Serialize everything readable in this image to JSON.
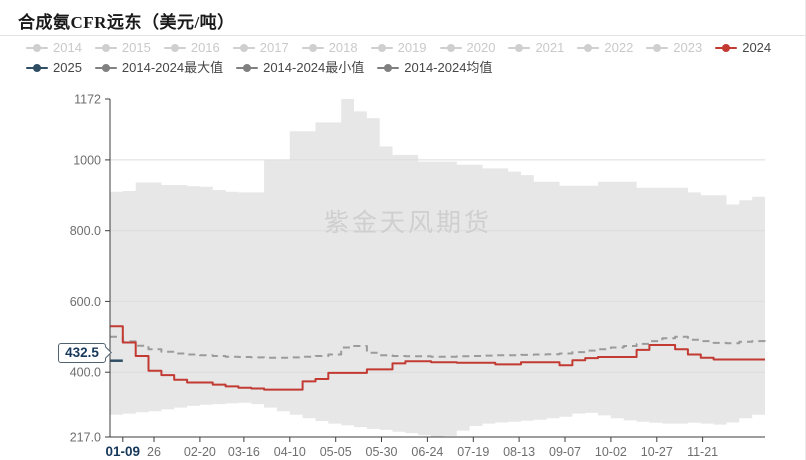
{
  "title": "合成氨CFR远东（美元/吨）",
  "watermark": "紫金天风期货",
  "colors": {
    "red_2024": "#c23a32",
    "navy_2025": "#2f4e63",
    "band_fill": "#e7e7e7",
    "mean_dash": "#9b9b9b",
    "legend_disabled": "#cfcfcf",
    "legend_gray_marker": "#808080",
    "legend_active_text": "#464646",
    "axis_line": "#3d3d3d",
    "tick_text": "#6e6e6e",
    "highlight_text": "#16385a",
    "gridline": "#dcdcdc",
    "watermark_text": "#cfcfcf"
  },
  "legend": {
    "rows": [
      [
        {
          "key": "2014",
          "label": "2014",
          "marker": "#cfcfcf",
          "text": "#c9c9c9",
          "active": false
        },
        {
          "key": "2015",
          "label": "2015",
          "marker": "#cfcfcf",
          "text": "#c9c9c9",
          "active": false
        },
        {
          "key": "2016",
          "label": "2016",
          "marker": "#cfcfcf",
          "text": "#c9c9c9",
          "active": false
        },
        {
          "key": "2017",
          "label": "2017",
          "marker": "#cfcfcf",
          "text": "#c9c9c9",
          "active": false
        },
        {
          "key": "2018",
          "label": "2018",
          "marker": "#cfcfcf",
          "text": "#c9c9c9",
          "active": false
        },
        {
          "key": "2019",
          "label": "2019",
          "marker": "#cfcfcf",
          "text": "#c9c9c9",
          "active": false
        },
        {
          "key": "2020",
          "label": "2020",
          "marker": "#cfcfcf",
          "text": "#c9c9c9",
          "active": false
        },
        {
          "key": "2021",
          "label": "2021",
          "marker": "#cfcfcf",
          "text": "#c9c9c9",
          "active": false
        },
        {
          "key": "2022",
          "label": "2022",
          "marker": "#cfcfcf",
          "text": "#c9c9c9",
          "active": false
        },
        {
          "key": "2023",
          "label": "2023",
          "marker": "#cfcfcf",
          "text": "#c9c9c9",
          "active": false
        },
        {
          "key": "2024",
          "label": "2024",
          "marker": "#c23a32",
          "text": "#464646",
          "active": true
        }
      ],
      [
        {
          "key": "2025",
          "label": "2025",
          "marker": "#2f4e63",
          "text": "#464646",
          "active": true
        },
        {
          "key": "max",
          "label": "2014-2024最大值",
          "marker": "#808080",
          "text": "#464646",
          "active": true
        },
        {
          "key": "min",
          "label": "2014-2024最小值",
          "marker": "#808080",
          "text": "#464646",
          "active": true
        },
        {
          "key": "avg",
          "label": "2014-2024均值",
          "marker": "#808080",
          "text": "#464646",
          "active": true
        }
      ]
    ]
  },
  "chart_data": {
    "type": "line",
    "title": "合成氨CFR远东（美元/吨）",
    "ylabel": "美元/吨",
    "ylim": [
      217,
      1172
    ],
    "weeks": 52,
    "x_start_day": 2,
    "x_end_day": 359,
    "grid": true,
    "legend_position": "top",
    "y_ticks": [
      {
        "label": "1172",
        "value": 1172,
        "grid": false
      },
      {
        "label": "1000",
        "value": 1000,
        "grid": true
      },
      {
        "label": "800.0",
        "value": 800,
        "grid": true
      },
      {
        "label": "600.0",
        "value": 600,
        "grid": true
      },
      {
        "label": "400.0",
        "value": 400,
        "grid": true
      },
      {
        "label": "217.0",
        "value": 217,
        "grid": false
      }
    ],
    "x_ticks": [
      {
        "label": "01-09",
        "day": 9,
        "bold": true
      },
      {
        "label": "26",
        "day": 26,
        "bold": false
      },
      {
        "label": "02-20",
        "day": 51,
        "bold": false
      },
      {
        "label": "03-16",
        "day": 75,
        "bold": false
      },
      {
        "label": "04-10",
        "day": 100,
        "bold": false
      },
      {
        "label": "05-05",
        "day": 125,
        "bold": false
      },
      {
        "label": "05-30",
        "day": 150,
        "bold": false
      },
      {
        "label": "06-24",
        "day": 175,
        "bold": false
      },
      {
        "label": "07-19",
        "day": 200,
        "bold": false
      },
      {
        "label": "08-13",
        "day": 225,
        "bold": false
      },
      {
        "label": "09-07",
        "day": 250,
        "bold": false
      },
      {
        "label": "10-02",
        "day": 275,
        "bold": false
      },
      {
        "label": "10-27",
        "day": 300,
        "bold": false
      },
      {
        "label": "11-21",
        "day": 325,
        "bold": false
      }
    ],
    "band": {
      "upper_name": "2014-2024最大值",
      "lower_name": "2014-2024最小值",
      "color": "#e7e7e7",
      "upper": [
        910,
        912,
        936,
        936,
        929,
        929,
        926,
        924,
        915,
        910,
        908,
        908,
        1000,
        1000,
        1081,
        1081,
        1106,
        1106,
        1172,
        1137,
        1118,
        1038,
        1014,
        1014,
        995,
        995,
        995,
        986,
        986,
        976,
        976,
        967,
        957,
        938,
        938,
        927,
        927,
        927,
        938,
        938,
        938,
        921,
        921,
        921,
        921,
        908,
        900,
        900,
        874,
        886,
        896,
        915
      ],
      "lower": [
        280,
        283,
        287,
        290,
        295,
        300,
        305,
        308,
        310,
        312,
        314,
        310,
        300,
        290,
        280,
        270,
        262,
        255,
        250,
        245,
        240,
        237,
        232,
        228,
        222,
        217,
        220,
        235,
        248,
        255,
        258,
        260,
        263,
        266,
        270,
        274,
        283,
        285,
        278,
        270,
        264,
        260,
        257,
        255,
        255,
        257,
        255,
        252,
        258,
        270,
        280,
        290
      ]
    },
    "lines": [
      {
        "name": "2014-2024均值",
        "color": "#9b9b9b",
        "dash": true,
        "width": 2,
        "values": [
          500,
          487,
          475,
          465,
          458,
          453,
          450,
          448,
          446,
          444,
          443,
          442,
          441,
          441,
          442,
          444,
          446,
          450,
          470,
          474,
          455,
          448,
          446,
          445,
          445,
          444,
          444,
          445,
          446,
          447,
          448,
          448,
          449,
          450,
          451,
          453,
          457,
          461,
          465,
          470,
          474,
          480,
          488,
          496,
          500,
          492,
          488,
          483,
          482,
          486,
          488,
          486
        ]
      },
      {
        "name": "2024",
        "color": "#c23a32",
        "dash": false,
        "width": 2,
        "values": [
          530,
          484,
          446,
          404,
          392,
          379,
          371,
          371,
          365,
          360,
          356,
          354,
          351,
          351,
          351,
          374,
          381,
          398,
          398,
          398,
          408,
          408,
          425,
          431,
          431,
          428,
          428,
          427,
          427,
          427,
          422,
          422,
          428,
          428,
          428,
          420,
          434,
          440,
          443,
          443,
          443,
          463,
          477,
          477,
          465,
          450,
          441,
          436,
          436,
          436,
          436,
          436
        ]
      },
      {
        "name": "2025",
        "color": "#2f4e63",
        "dash": false,
        "width": 2.5,
        "values": [
          432.5,
          432.5
        ]
      }
    ],
    "pointer": {
      "label": "432.5",
      "value": 432.5,
      "x_tick": "01-09"
    }
  }
}
